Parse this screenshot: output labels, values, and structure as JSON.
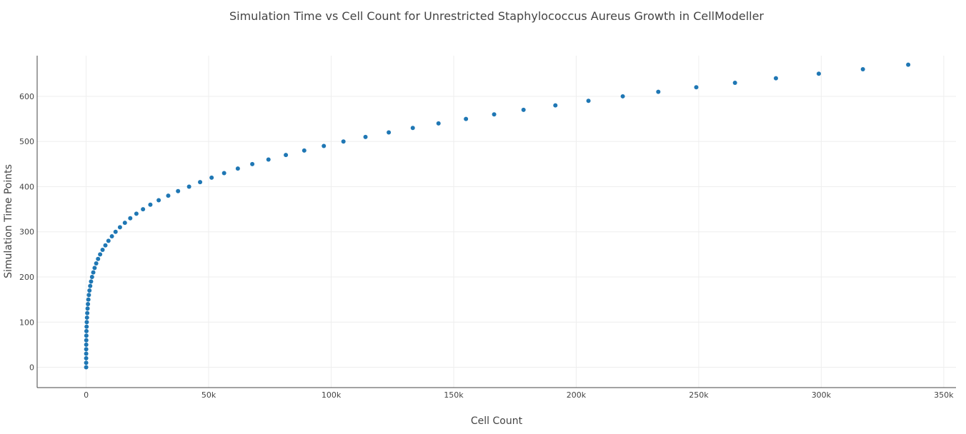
{
  "chart_data": {
    "type": "scatter",
    "title": "Simulation Time vs Cell Count for Unrestricted Staphylococcus Aureus Growth in CellModeller",
    "xlabel": "Cell Count",
    "ylabel": "Simulation Time Points",
    "xlim": [
      -20000,
      355000
    ],
    "ylim": [
      -45,
      690
    ],
    "x_ticks": [
      {
        "value": 0,
        "label": "0"
      },
      {
        "value": 50000,
        "label": "50k"
      },
      {
        "value": 100000,
        "label": "100k"
      },
      {
        "value": 150000,
        "label": "150k"
      },
      {
        "value": 200000,
        "label": "200k"
      },
      {
        "value": 250000,
        "label": "250k"
      },
      {
        "value": 300000,
        "label": "300k"
      },
      {
        "value": 350000,
        "label": "350k"
      }
    ],
    "y_ticks": [
      {
        "value": 0,
        "label": "0"
      },
      {
        "value": 100,
        "label": "100"
      },
      {
        "value": 200,
        "label": "200"
      },
      {
        "value": 300,
        "label": "300"
      },
      {
        "value": 400,
        "label": "400"
      },
      {
        "value": 500,
        "label": "500"
      },
      {
        "value": 600,
        "label": "600"
      }
    ],
    "grid": true,
    "marker_color": "#1f77b4",
    "series": [
      {
        "x": [
          1,
          2,
          4,
          8,
          16,
          32,
          50,
          80,
          120,
          180,
          250,
          340,
          450,
          580,
          730,
          900,
          1100,
          1350,
          1650,
          2000,
          2400,
          2900,
          3450,
          4100,
          4850,
          5700,
          6700,
          7850,
          9100,
          10500,
          12000,
          13800,
          15800,
          18000,
          20500,
          23200,
          26200,
          29600,
          33500,
          37500,
          42000,
          46500,
          51200,
          56300,
          61900,
          67800,
          74400,
          81500,
          89000,
          97000,
          105000,
          114000,
          123500,
          133300,
          143800,
          155000,
          166500,
          178500,
          191500,
          205000,
          219000,
          233500,
          249000,
          264800,
          281500,
          299000,
          317000,
          335500
        ],
        "y": [
          0,
          10,
          20,
          30,
          40,
          50,
          60,
          70,
          80,
          90,
          100,
          110,
          120,
          130,
          140,
          150,
          160,
          170,
          180,
          190,
          200,
          210,
          220,
          230,
          240,
          250,
          260,
          270,
          280,
          290,
          300,
          310,
          320,
          330,
          340,
          350,
          360,
          370,
          380,
          390,
          400,
          410,
          420,
          430,
          440,
          450,
          460,
          470,
          480,
          490,
          500,
          510,
          520,
          530,
          540,
          550,
          560,
          570,
          580,
          590,
          600,
          610,
          620,
          630,
          640,
          650,
          660,
          670
        ]
      }
    ]
  }
}
